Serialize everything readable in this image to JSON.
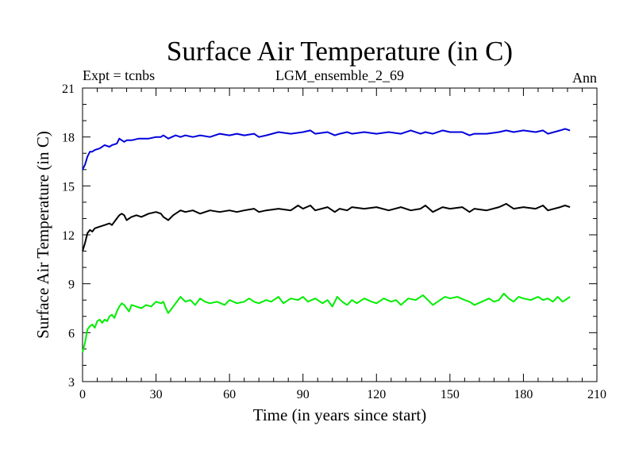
{
  "chart_data": {
    "type": "line",
    "title": "Surface Air Temperature (in C)",
    "left_label": "Expt = tcnbs",
    "center_label": "LGM_ensemble_2_69",
    "right_label": "Ann",
    "xlabel": "Time (in years since start)",
    "ylabel": "Surface Air Temperature (in C)",
    "xlim": [
      0,
      210
    ],
    "ylim": [
      3,
      21
    ],
    "xticks": [
      0,
      30,
      60,
      90,
      120,
      150,
      180,
      210
    ],
    "yticks": [
      3,
      6,
      9,
      12,
      15,
      18,
      21
    ],
    "x_minor_step": 6,
    "y_minor_step": 1,
    "x_tick_labels": [
      "0",
      "30",
      "60",
      "90",
      "120",
      "150",
      "180",
      "210"
    ],
    "y_tick_labels": [
      "3",
      "6",
      "9",
      "12",
      "15",
      "18",
      "21"
    ],
    "series": [
      {
        "name": "blue",
        "color": "#0000dd",
        "x": [
          0,
          1,
          2,
          3,
          4,
          5,
          7,
          9,
          11,
          12,
          14,
          15,
          16,
          17,
          18,
          20,
          23,
          27,
          30,
          32,
          33,
          35,
          38,
          40,
          42,
          45,
          48,
          52,
          56,
          60,
          63,
          66,
          70,
          72,
          75,
          80,
          85,
          90,
          93,
          95,
          100,
          103,
          105,
          108,
          110,
          115,
          120,
          125,
          130,
          134,
          138,
          140,
          143,
          147,
          150,
          155,
          158,
          160,
          165,
          170,
          173,
          176,
          180,
          185,
          188,
          190,
          195,
          197,
          199
        ],
        "values": [
          16.0,
          16.3,
          16.8,
          17.1,
          17.1,
          17.2,
          17.3,
          17.5,
          17.4,
          17.5,
          17.6,
          17.9,
          17.8,
          17.7,
          17.8,
          17.8,
          17.9,
          17.9,
          18.0,
          18.0,
          18.1,
          17.9,
          18.1,
          18.0,
          18.1,
          18.0,
          18.1,
          18.0,
          18.2,
          18.1,
          18.2,
          18.1,
          18.2,
          18.0,
          18.1,
          18.3,
          18.2,
          18.3,
          18.4,
          18.2,
          18.3,
          18.1,
          18.2,
          18.3,
          18.2,
          18.3,
          18.2,
          18.3,
          18.2,
          18.4,
          18.2,
          18.3,
          18.2,
          18.4,
          18.3,
          18.3,
          18.1,
          18.2,
          18.2,
          18.3,
          18.4,
          18.3,
          18.4,
          18.3,
          18.4,
          18.2,
          18.4,
          18.5,
          18.4
        ]
      },
      {
        "name": "black",
        "color": "#000000",
        "x": [
          0,
          1,
          2,
          3,
          4,
          5,
          7,
          9,
          11,
          12,
          14,
          15,
          16,
          17,
          18,
          20,
          22,
          24,
          27,
          30,
          32,
          33,
          35,
          37,
          40,
          42,
          45,
          48,
          52,
          56,
          60,
          63,
          66,
          70,
          72,
          75,
          80,
          85,
          88,
          90,
          93,
          95,
          100,
          103,
          105,
          108,
          110,
          115,
          120,
          125,
          130,
          134,
          138,
          140,
          143,
          147,
          150,
          155,
          158,
          160,
          165,
          170,
          173,
          176,
          180,
          185,
          188,
          190,
          195,
          197,
          199
        ],
        "values": [
          11.0,
          11.5,
          12.1,
          12.3,
          12.2,
          12.4,
          12.5,
          12.6,
          12.7,
          12.6,
          13.0,
          13.2,
          13.3,
          13.2,
          12.9,
          13.1,
          13.2,
          13.1,
          13.3,
          13.4,
          13.3,
          13.1,
          12.9,
          13.2,
          13.5,
          13.4,
          13.5,
          13.3,
          13.5,
          13.4,
          13.5,
          13.4,
          13.5,
          13.6,
          13.4,
          13.5,
          13.6,
          13.5,
          13.8,
          13.6,
          13.8,
          13.5,
          13.7,
          13.4,
          13.6,
          13.5,
          13.7,
          13.6,
          13.7,
          13.5,
          13.7,
          13.5,
          13.6,
          13.8,
          13.4,
          13.7,
          13.6,
          13.7,
          13.4,
          13.6,
          13.5,
          13.7,
          13.9,
          13.6,
          13.7,
          13.6,
          13.8,
          13.5,
          13.7,
          13.8,
          13.7
        ]
      },
      {
        "name": "green",
        "color": "#00ee00",
        "x": [
          0,
          1,
          2,
          3,
          4,
          5,
          6,
          7,
          8,
          9,
          10,
          11,
          12,
          13,
          14,
          15,
          16,
          17,
          18,
          19,
          20,
          22,
          24,
          26,
          28,
          30,
          32,
          33,
          34,
          35,
          36,
          38,
          40,
          42,
          44,
          46,
          48,
          50,
          52,
          55,
          58,
          60,
          63,
          66,
          68,
          70,
          72,
          75,
          77,
          80,
          82,
          85,
          88,
          90,
          92,
          95,
          98,
          100,
          102,
          104,
          106,
          108,
          110,
          112,
          115,
          118,
          120,
          123,
          126,
          128,
          130,
          133,
          136,
          139,
          141,
          143,
          145,
          148,
          150,
          153,
          156,
          158,
          160,
          163,
          166,
          168,
          170,
          172,
          174,
          176,
          178,
          180,
          183,
          186,
          188,
          190,
          192,
          194,
          196,
          198,
          199
        ],
        "values": [
          4.8,
          5.4,
          6.2,
          6.4,
          6.5,
          6.3,
          6.7,
          6.8,
          6.6,
          6.8,
          6.7,
          7.0,
          7.1,
          6.9,
          7.3,
          7.6,
          7.8,
          7.7,
          7.5,
          7.3,
          7.7,
          7.6,
          7.5,
          7.7,
          7.6,
          7.9,
          7.8,
          7.9,
          7.5,
          7.2,
          7.4,
          7.8,
          8.2,
          7.9,
          8.0,
          7.7,
          8.1,
          7.9,
          7.8,
          7.9,
          7.7,
          8.0,
          7.8,
          7.9,
          8.1,
          7.9,
          7.8,
          8.0,
          7.9,
          8.2,
          7.8,
          8.1,
          8.0,
          8.2,
          7.9,
          8.1,
          7.8,
          8.0,
          7.6,
          8.2,
          7.9,
          7.7,
          8.0,
          7.8,
          8.1,
          7.9,
          7.8,
          8.1,
          7.9,
          8.0,
          7.7,
          8.1,
          8.0,
          8.3,
          8.0,
          7.7,
          7.9,
          8.2,
          8.1,
          8.2,
          8.0,
          7.9,
          7.7,
          7.9,
          8.1,
          7.9,
          8.0,
          8.4,
          8.1,
          7.9,
          8.2,
          8.1,
          8.0,
          8.2,
          8.0,
          8.1,
          7.9,
          8.2,
          7.9,
          8.1,
          8.2
        ]
      }
    ]
  }
}
